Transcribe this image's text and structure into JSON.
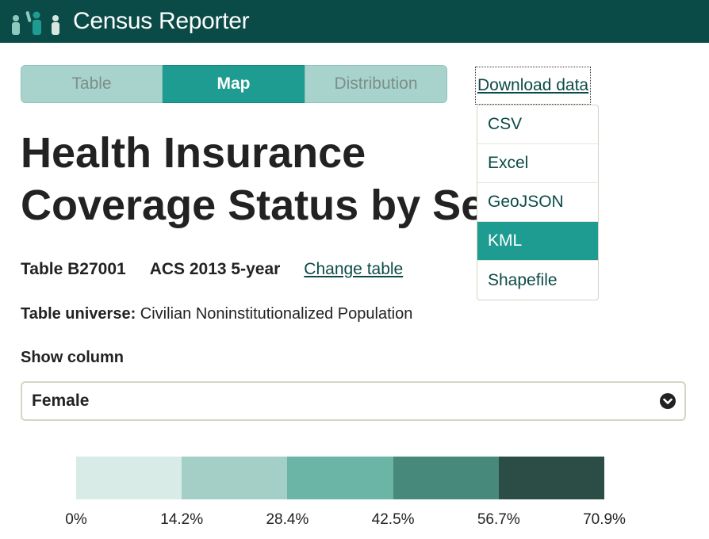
{
  "header": {
    "site_title": "Census Reporter",
    "logo_icon": "people-logo-icon",
    "background_color": "#0b4b47"
  },
  "tabs": [
    {
      "label": "Table",
      "active": false
    },
    {
      "label": "Map",
      "active": true
    },
    {
      "label": "Distribution",
      "active": false
    }
  ],
  "download": {
    "label": "Download data",
    "options": [
      "CSV",
      "Excel",
      "GeoJSON",
      "KML",
      "Shapefile"
    ],
    "highlighted": "KML"
  },
  "title": "Health Insurance Coverage Status by Sex by Age",
  "meta": {
    "table_code": "Table B27001",
    "release": "ACS 2013 5-year",
    "change_table": "Change table",
    "compare_fragment": "s"
  },
  "universe": {
    "label": "Table universe:",
    "value": "Civilian Noninstitutionalized Population"
  },
  "column_selector": {
    "label": "Show column",
    "selected": "Female"
  },
  "legend": {
    "colors": [
      "#d8ebe7",
      "#a3cfc6",
      "#6ab5a6",
      "#478a7c",
      "#2b4d46"
    ],
    "ticks": [
      "0%",
      "14.2%",
      "28.4%",
      "42.5%",
      "56.7%",
      "70.9%"
    ]
  },
  "accent_color": "#1f9c91"
}
